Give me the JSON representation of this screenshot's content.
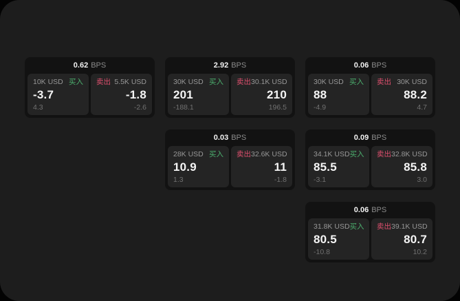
{
  "theme": {
    "page_bg": "#1d1d1d",
    "card_bg": "#121212",
    "tile_bg": "#242424",
    "buy_color": "#4caf6e",
    "sell_color": "#dd4f6d",
    "text_primary": "#f5f5f5",
    "text_muted": "#979797",
    "text_dim": "#717171"
  },
  "labels": {
    "bps_unit": "BPS",
    "buy": "买入",
    "sell": "卖出"
  },
  "cards": [
    {
      "bps": "0.62",
      "buy": {
        "amount": "10K USD",
        "value": "-3.7",
        "sub": "4.3"
      },
      "sell": {
        "amount": "5.5K USD",
        "value": "-1.8",
        "sub": "-2.6"
      }
    },
    {
      "bps": "2.92",
      "buy": {
        "amount": "30K USD",
        "value": "201",
        "sub": "-188.1"
      },
      "sell": {
        "amount": "30.1K USD",
        "value": "210",
        "sub": "196.5"
      }
    },
    {
      "bps": "0.06",
      "buy": {
        "amount": "30K USD",
        "value": "88",
        "sub": "-4.9"
      },
      "sell": {
        "amount": "30K USD",
        "value": "88.2",
        "sub": "4.7"
      }
    },
    {
      "bps": "0.03",
      "buy": {
        "amount": "28K USD",
        "value": "10.9",
        "sub": "1.3"
      },
      "sell": {
        "amount": "32.6K USD",
        "value": "11",
        "sub": "-1.8"
      }
    },
    {
      "bps": "0.09",
      "buy": {
        "amount": "34.1K USD",
        "value": "85.5",
        "sub": "-3.1"
      },
      "sell": {
        "amount": "32.8K USD",
        "value": "85.8",
        "sub": "3.0"
      }
    },
    {
      "bps": "0.06",
      "buy": {
        "amount": "31.8K USD",
        "value": "80.5",
        "sub": "-10.8"
      },
      "sell": {
        "amount": "39.1K USD",
        "value": "80.7",
        "sub": "10.2"
      }
    }
  ]
}
